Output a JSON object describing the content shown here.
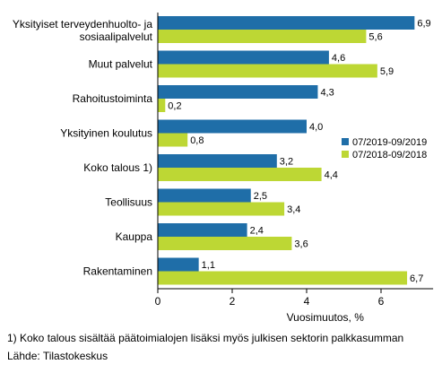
{
  "chart_data": {
    "type": "bar",
    "orientation": "horizontal",
    "categories": [
      "Yksityiset terveydenhuolto- ja sosiaalipalvelut",
      "Muut palvelut",
      "Rahoitustoiminta",
      "Yksityinen koulutus",
      "Koko talous 1)",
      "Teollisuus",
      "Kauppa",
      "Rakentaminen"
    ],
    "category_lines": [
      [
        "Yksityiset terveydenhuolto- ja",
        "sosiaalipalvelut"
      ],
      [
        "Muut palvelut"
      ],
      [
        "Rahoitustoiminta"
      ],
      [
        "Yksityinen koulutus"
      ],
      [
        "Koko talous 1)"
      ],
      [
        "Teollisuus"
      ],
      [
        "Kauppa"
      ],
      [
        "Rakentaminen"
      ]
    ],
    "series": [
      {
        "name": "07/2019-09/2019",
        "color": "#1f6ea8",
        "values": [
          6.9,
          4.6,
          4.3,
          4.0,
          3.2,
          2.5,
          2.4,
          1.1
        ],
        "labels": [
          "6,9",
          "4,6",
          "4,3",
          "4,0",
          "3,2",
          "2,5",
          "2,4",
          "1,1"
        ]
      },
      {
        "name": "07/2018-09/2018",
        "color": "#bdd734",
        "values": [
          5.6,
          5.9,
          0.2,
          0.8,
          4.4,
          3.4,
          3.6,
          6.7
        ],
        "labels": [
          "5,6",
          "5,9",
          "0,2",
          "0,8",
          "4,4",
          "3,4",
          "3,6",
          "6,7"
        ]
      }
    ],
    "xlabel": "Vuosimuutos, %",
    "xlim": [
      0,
      7.4
    ],
    "xticks": [
      0,
      2,
      4,
      6
    ],
    "grid": false,
    "legend_position": "right"
  },
  "footnote": "1) Koko talous sisältää päätoimialojen lisäksi myös julkisen sektorin palkkasumman",
  "source": "Lähde: Tilastokeskus"
}
